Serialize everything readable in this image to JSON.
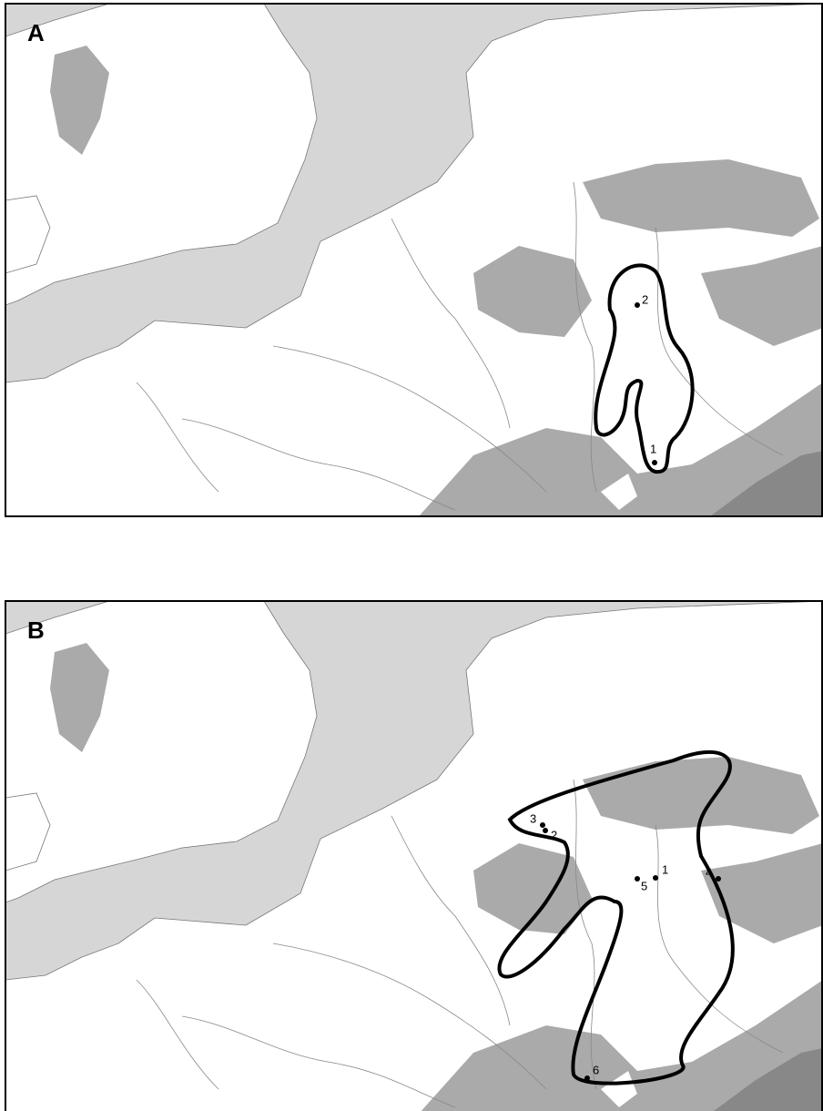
{
  "panels": [
    {
      "label": "A",
      "sites": [
        "1",
        "2"
      ]
    },
    {
      "label": "B",
      "sites": [
        "1",
        "2",
        "3",
        "4",
        "5",
        "6"
      ]
    }
  ]
}
